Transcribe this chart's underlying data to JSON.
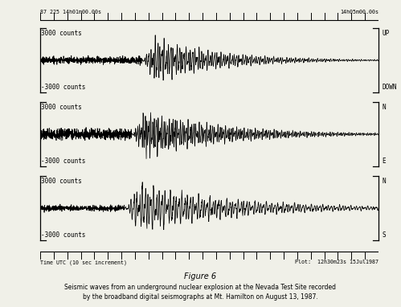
{
  "title": "Figure 6",
  "subtitle1": "Seismic waves from an underground nuclear explosion at the Nevada Test Site recorded",
  "subtitle2": "by the broadband digital seismographs at Mt. Hamilton on August 13, 1987.",
  "top_left_label": "87 225 14h01m00.00s",
  "top_right_label": "14h05m00.00s",
  "bottom_left_label": "Time UTC (10 sec increment)",
  "bottom_right_label": "Plot:  12h30m23s 15Jul1987",
  "panels": [
    {
      "top_label": "3000 counts",
      "bottom_label": "-3000 counts",
      "right_top": "UP",
      "right_bottom": "DOWN"
    },
    {
      "top_label": "3000 counts",
      "bottom_label": "-3000 counts",
      "right_top": "N",
      "right_bottom": "E"
    },
    {
      "top_label": "3000 counts",
      "bottom_label": "-3000 counts",
      "right_top": "N",
      "right_bottom": "S"
    }
  ],
  "bg_color": "#f0f0e8",
  "line_color": "#000000",
  "text_color": "#000000",
  "n_points": 2000,
  "seed": 42,
  "n_ruler_ticks": 25
}
